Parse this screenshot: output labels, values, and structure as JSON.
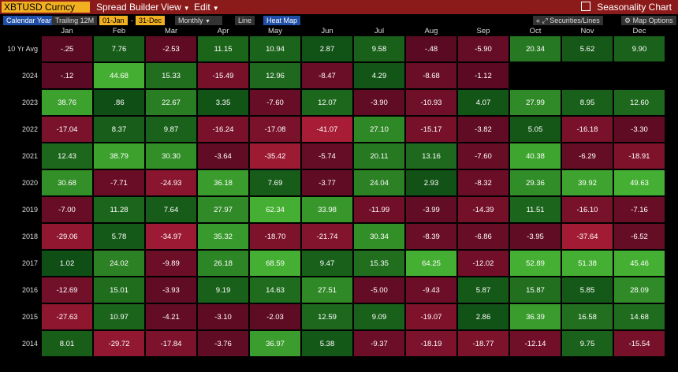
{
  "header": {
    "ticker": "XBTUSD Curncy",
    "menus": [
      "Spread Builder",
      "View",
      "Edit"
    ],
    "chart_title": "Seasonality Chart"
  },
  "toolbar": {
    "calendar_year": "Calendar Year",
    "trailing": "Trailing 12M",
    "date_from": "01-Jan",
    "date_sep": "-",
    "date_to": "31-Dec",
    "frequency": "Monthly",
    "line": "Line",
    "heat_map": "Heat Map",
    "securities_lines": "Securities/Lines",
    "map_options": "Map Options"
  },
  "months": [
    "Jan",
    "Feb",
    "Mar",
    "Apr",
    "May",
    "Jun",
    "Jul",
    "Aug",
    "Sep",
    "Oct",
    "Nov",
    "Dec"
  ],
  "rows": [
    {
      "label": "10 Yr Avg",
      "values": [
        "-.25",
        "7.76",
        "-2.53",
        "11.15",
        "10.94",
        "2.87",
        "9.58",
        "-.48",
        "-5.90",
        "20.34",
        "5.62",
        "9.90"
      ]
    },
    {
      "label": "2024",
      "values": [
        "-.12",
        "44.68",
        "15.33",
        "-15.49",
        "12.96",
        "-8.47",
        "4.29",
        "-8.68",
        "-1.12",
        "",
        "",
        ""
      ]
    },
    {
      "label": "2023",
      "values": [
        "38.76",
        ".86",
        "22.67",
        "3.35",
        "-7.60",
        "12.07",
        "-3.90",
        "-10.93",
        "4.07",
        "27.99",
        "8.95",
        "12.60"
      ]
    },
    {
      "label": "2022",
      "values": [
        "-17.04",
        "8.37",
        "9.87",
        "-16.24",
        "-17.08",
        "-41.07",
        "27.10",
        "-15.17",
        "-3.82",
        "5.05",
        "-16.18",
        "-3.30"
      ]
    },
    {
      "label": "2021",
      "values": [
        "12.43",
        "38.79",
        "30.30",
        "-3.64",
        "-35.42",
        "-5.74",
        "20.11",
        "13.16",
        "-7.60",
        "40.38",
        "-6.29",
        "-18.91"
      ]
    },
    {
      "label": "2020",
      "values": [
        "30.68",
        "-7.71",
        "-24.93",
        "36.18",
        "7.69",
        "-3.77",
        "24.04",
        "2.93",
        "-8.32",
        "29.36",
        "39.92",
        "49.63"
      ]
    },
    {
      "label": "2019",
      "values": [
        "-7.00",
        "11.28",
        "7.64",
        "27.97",
        "62.34",
        "33.98",
        "-11.99",
        "-3.99",
        "-14.39",
        "11.51",
        "-16.10",
        "-7.16"
      ]
    },
    {
      "label": "2018",
      "values": [
        "-29.06",
        "5.78",
        "-34.97",
        "35.32",
        "-18.70",
        "-21.74",
        "30.34",
        "-8.39",
        "-6.86",
        "-3.95",
        "-37.64",
        "-6.52"
      ]
    },
    {
      "label": "2017",
      "values": [
        "1.02",
        "24.02",
        "-9.89",
        "26.18",
        "68.59",
        "9.47",
        "15.35",
        "64.25",
        "-12.02",
        "52.89",
        "51.38",
        "45.46"
      ]
    },
    {
      "label": "2016",
      "values": [
        "-12.69",
        "15.01",
        "-3.93",
        "9.19",
        "14.63",
        "27.51",
        "-5.00",
        "-9.43",
        "5.87",
        "15.87",
        "5.85",
        "28.09"
      ]
    },
    {
      "label": "2015",
      "values": [
        "-27.63",
        "10.97",
        "-4.21",
        "-3.10",
        "-2.03",
        "12.59",
        "9.09",
        "-19.07",
        "2.86",
        "36.39",
        "16.58",
        "14.68"
      ]
    },
    {
      "label": "2014",
      "values": [
        "8.01",
        "-29.72",
        "-17.84",
        "-3.76",
        "36.97",
        "5.38",
        "-9.37",
        "-18.19",
        "-18.77",
        "-12.14",
        "9.75",
        "-15.54"
      ]
    }
  ]
}
